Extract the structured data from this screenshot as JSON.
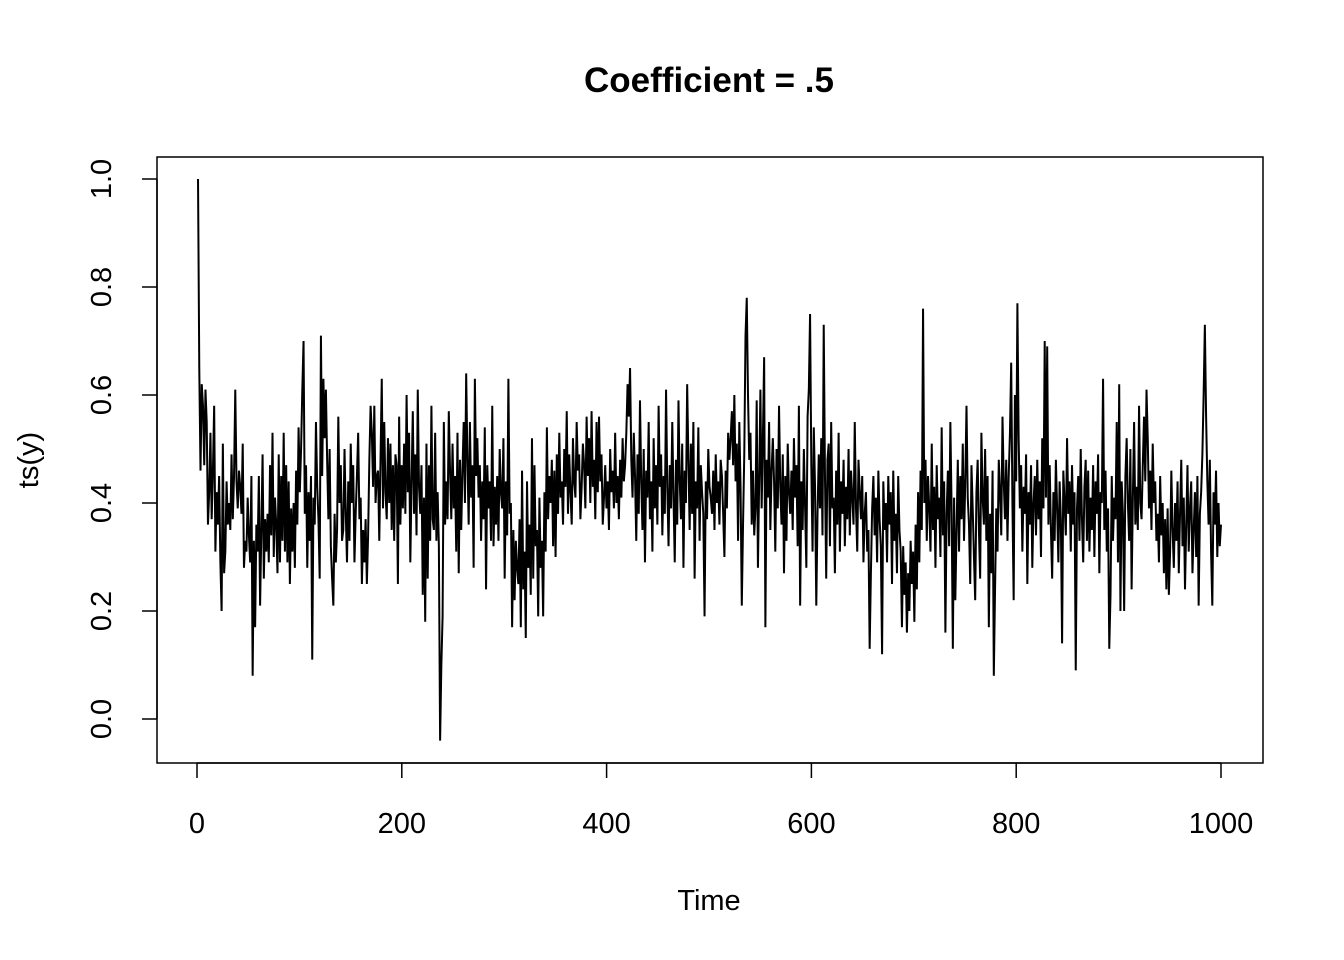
{
  "chart_data": {
    "type": "line",
    "title": "Coefficient = .5",
    "xlabel": "Time",
    "ylabel": "ts(y)",
    "xlim": [
      1,
      1000
    ],
    "ylim": [
      -0.04,
      1.0
    ],
    "x_ticks": [
      "0",
      "200",
      "400",
      "600",
      "800",
      "1000"
    ],
    "y_ticks": [
      "0.0",
      "0.2",
      "0.4",
      "0.6",
      "0.8",
      "1.0"
    ],
    "grid": false,
    "line_color": "#000000",
    "series": [
      {
        "x_start": 1,
        "x_step": 1,
        "values": [
          1.0,
          0.65,
          0.46,
          0.62,
          0.58,
          0.47,
          0.61,
          0.55,
          0.36,
          0.42,
          0.53,
          0.37,
          0.46,
          0.58,
          0.31,
          0.42,
          0.36,
          0.45,
          0.29,
          0.2,
          0.51,
          0.27,
          0.31,
          0.44,
          0.36,
          0.4,
          0.35,
          0.49,
          0.37,
          0.45,
          0.61,
          0.44,
          0.39,
          0.46,
          0.43,
          0.38,
          0.51,
          0.28,
          0.33,
          0.31,
          0.41,
          0.34,
          0.29,
          0.45,
          0.08,
          0.33,
          0.17,
          0.36,
          0.31,
          0.45,
          0.21,
          0.35,
          0.49,
          0.26,
          0.37,
          0.31,
          0.38,
          0.29,
          0.47,
          0.34,
          0.53,
          0.3,
          0.41,
          0.36,
          0.27,
          0.49,
          0.29,
          0.45,
          0.33,
          0.53,
          0.31,
          0.47,
          0.29,
          0.44,
          0.25,
          0.39,
          0.31,
          0.4,
          0.28,
          0.46,
          0.36,
          0.54,
          0.42,
          0.5,
          0.61,
          0.7,
          0.38,
          0.47,
          0.28,
          0.42,
          0.33,
          0.45,
          0.11,
          0.41,
          0.36,
          0.55,
          0.43,
          0.37,
          0.26,
          0.71,
          0.45,
          0.63,
          0.52,
          0.61,
          0.48,
          0.37,
          0.5,
          0.32,
          0.26,
          0.21,
          0.38,
          0.29,
          0.35,
          0.56,
          0.4,
          0.47,
          0.33,
          0.35,
          0.5,
          0.38,
          0.29,
          0.44,
          0.33,
          0.51,
          0.4,
          0.47,
          0.29,
          0.38,
          0.45,
          0.53,
          0.37,
          0.41,
          0.25,
          0.35,
          0.29,
          0.37,
          0.25,
          0.34,
          0.48,
          0.58,
          0.53,
          0.43,
          0.58,
          0.4,
          0.45,
          0.46,
          0.33,
          0.48,
          0.63,
          0.39,
          0.55,
          0.42,
          0.37,
          0.52,
          0.4,
          0.51,
          0.35,
          0.47,
          0.33,
          0.49,
          0.47,
          0.25,
          0.56,
          0.36,
          0.47,
          0.39,
          0.51,
          0.38,
          0.6,
          0.42,
          0.53,
          0.29,
          0.44,
          0.57,
          0.38,
          0.49,
          0.34,
          0.61,
          0.43,
          0.38,
          0.47,
          0.23,
          0.41,
          0.18,
          0.51,
          0.26,
          0.47,
          0.33,
          0.58,
          0.37,
          0.35,
          0.53,
          0.33,
          0.42,
          0.32,
          -0.04,
          0.1,
          0.19,
          0.55,
          0.36,
          0.44,
          0.37,
          0.57,
          0.46,
          0.37,
          0.51,
          0.39,
          0.45,
          0.31,
          0.53,
          0.27,
          0.48,
          0.35,
          0.46,
          0.55,
          0.4,
          0.64,
          0.48,
          0.36,
          0.55,
          0.41,
          0.47,
          0.28,
          0.63,
          0.45,
          0.52,
          0.41,
          0.47,
          0.33,
          0.44,
          0.37,
          0.54,
          0.24,
          0.47,
          0.39,
          0.44,
          0.33,
          0.58,
          0.32,
          0.43,
          0.36,
          0.45,
          0.33,
          0.5,
          0.42,
          0.39,
          0.52,
          0.26,
          0.44,
          0.34,
          0.63,
          0.38,
          0.4,
          0.17,
          0.35,
          0.22,
          0.33,
          0.28,
          0.25,
          0.37,
          0.17,
          0.46,
          0.24,
          0.31,
          0.15,
          0.44,
          0.28,
          0.36,
          0.23,
          0.52,
          0.26,
          0.47,
          0.32,
          0.35,
          0.19,
          0.41,
          0.28,
          0.33,
          0.19,
          0.42,
          0.31,
          0.54,
          0.37,
          0.45,
          0.4,
          0.48,
          0.32,
          0.46,
          0.3,
          0.49,
          0.38,
          0.53,
          0.41,
          0.44,
          0.36,
          0.5,
          0.43,
          0.57,
          0.38,
          0.49,
          0.42,
          0.36,
          0.52,
          0.44,
          0.41,
          0.55,
          0.46,
          0.49,
          0.37,
          0.43,
          0.51,
          0.47,
          0.39,
          0.56,
          0.45,
          0.52,
          0.4,
          0.57,
          0.43,
          0.48,
          0.37,
          0.55,
          0.42,
          0.56,
          0.44,
          0.49,
          0.36,
          0.41,
          0.47,
          0.39,
          0.44,
          0.35,
          0.5,
          0.42,
          0.46,
          0.39,
          0.53,
          0.4,
          0.45,
          0.37,
          0.48,
          0.41,
          0.52,
          0.44,
          0.47,
          0.53,
          0.62,
          0.56,
          0.65,
          0.48,
          0.41,
          0.53,
          0.45,
          0.33,
          0.49,
          0.38,
          0.59,
          0.44,
          0.35,
          0.5,
          0.29,
          0.46,
          0.41,
          0.55,
          0.37,
          0.44,
          0.31,
          0.52,
          0.39,
          0.47,
          0.36,
          0.58,
          0.43,
          0.49,
          0.34,
          0.45,
          0.38,
          0.61,
          0.43,
          0.32,
          0.47,
          0.39,
          0.55,
          0.41,
          0.29,
          0.48,
          0.36,
          0.59,
          0.44,
          0.37,
          0.51,
          0.28,
          0.46,
          0.4,
          0.62,
          0.48,
          0.35,
          0.51,
          0.38,
          0.55,
          0.26,
          0.44,
          0.39,
          0.54,
          0.33,
          0.47,
          0.42,
          0.38,
          0.19,
          0.44,
          0.37,
          0.5,
          0.43,
          0.41,
          0.38,
          0.46,
          0.35,
          0.49,
          0.4,
          0.44,
          0.36,
          0.48,
          0.45,
          0.38,
          0.3,
          0.46,
          0.39,
          0.53,
          0.48,
          0.52,
          0.57,
          0.47,
          0.6,
          0.44,
          0.51,
          0.33,
          0.55,
          0.43,
          0.21,
          0.36,
          0.49,
          0.71,
          0.78,
          0.6,
          0.48,
          0.53,
          0.36,
          0.46,
          0.34,
          0.39,
          0.59,
          0.28,
          0.44,
          0.61,
          0.39,
          0.52,
          0.67,
          0.17,
          0.48,
          0.41,
          0.55,
          0.35,
          0.46,
          0.52,
          0.44,
          0.31,
          0.5,
          0.39,
          0.58,
          0.43,
          0.36,
          0.49,
          0.27,
          0.45,
          0.33,
          0.51,
          0.42,
          0.38,
          0.46,
          0.35,
          0.52,
          0.41,
          0.47,
          0.32,
          0.58,
          0.21,
          0.44,
          0.35,
          0.5,
          0.39,
          0.28,
          0.56,
          0.61,
          0.75,
          0.47,
          0.31,
          0.54,
          0.43,
          0.21,
          0.38,
          0.49,
          0.39,
          0.52,
          0.34,
          0.73,
          0.45,
          0.26,
          0.48,
          0.51,
          0.32,
          0.55,
          0.39,
          0.41,
          0.27,
          0.46,
          0.36,
          0.53,
          0.31,
          0.44,
          0.38,
          0.48,
          0.32,
          0.43,
          0.37,
          0.5,
          0.34,
          0.46,
          0.41,
          0.36,
          0.55,
          0.39,
          0.31,
          0.48,
          0.42,
          0.37,
          0.45,
          0.29,
          0.38,
          0.42,
          0.31,
          0.35,
          0.13,
          0.27,
          0.39,
          0.45,
          0.34,
          0.41,
          0.29,
          0.46,
          0.37,
          0.32,
          0.12,
          0.44,
          0.35,
          0.4,
          0.29,
          0.45,
          0.36,
          0.42,
          0.25,
          0.46,
          0.33,
          0.38,
          0.27,
          0.45,
          0.35,
          0.31,
          0.17,
          0.32,
          0.23,
          0.29,
          0.16,
          0.27,
          0.2,
          0.33,
          0.25,
          0.31,
          0.18,
          0.36,
          0.24,
          0.42,
          0.29,
          0.46,
          0.35,
          0.76,
          0.4,
          0.48,
          0.33,
          0.45,
          0.39,
          0.31,
          0.51,
          0.35,
          0.43,
          0.28,
          0.47,
          0.37,
          0.41,
          0.3,
          0.54,
          0.34,
          0.44,
          0.16,
          0.38,
          0.46,
          0.32,
          0.55,
          0.39,
          0.13,
          0.41,
          0.22,
          0.35,
          0.48,
          0.31,
          0.45,
          0.37,
          0.51,
          0.33,
          0.44,
          0.58,
          0.41,
          0.36,
          0.25,
          0.47,
          0.39,
          0.3,
          0.22,
          0.42,
          0.48,
          0.35,
          0.26,
          0.53,
          0.41,
          0.36,
          0.5,
          0.33,
          0.45,
          0.17,
          0.38,
          0.27,
          0.46,
          0.08,
          0.24,
          0.39,
          0.31,
          0.48,
          0.42,
          0.34,
          0.56,
          0.44,
          0.37,
          0.48,
          0.33,
          0.45,
          0.53,
          0.66,
          0.4,
          0.22,
          0.6,
          0.44,
          0.77,
          0.52,
          0.39,
          0.47,
          0.31,
          0.43,
          0.38,
          0.49,
          0.25,
          0.42,
          0.36,
          0.47,
          0.28,
          0.4,
          0.45,
          0.34,
          0.48,
          0.37,
          0.44,
          0.3,
          0.52,
          0.39,
          0.7,
          0.41,
          0.69,
          0.36,
          0.47,
          0.35,
          0.26,
          0.42,
          0.33,
          0.48,
          0.39,
          0.29,
          0.44,
          0.37,
          0.14,
          0.46,
          0.4,
          0.34,
          0.52,
          0.38,
          0.44,
          0.31,
          0.47,
          0.36,
          0.42,
          0.09,
          0.39,
          0.45,
          0.33,
          0.5,
          0.37,
          0.29,
          0.43,
          0.48,
          0.33,
          0.46,
          0.31,
          0.41,
          0.35,
          0.47,
          0.3,
          0.44,
          0.38,
          0.49,
          0.27,
          0.42,
          0.4,
          0.63,
          0.35,
          0.46,
          0.31,
          0.39,
          0.13,
          0.23,
          0.45,
          0.33,
          0.41,
          0.37,
          0.55,
          0.29,
          0.62,
          0.2,
          0.44,
          0.38,
          0.2,
          0.45,
          0.52,
          0.4,
          0.33,
          0.5,
          0.24,
          0.41,
          0.55,
          0.36,
          0.43,
          0.35,
          0.58,
          0.4,
          0.37,
          0.47,
          0.56,
          0.44,
          0.61,
          0.52,
          0.39,
          0.46,
          0.35,
          0.51,
          0.4,
          0.44,
          0.33,
          0.38,
          0.29,
          0.45,
          0.34,
          0.4,
          0.27,
          0.37,
          0.24,
          0.39,
          0.23,
          0.31,
          0.46,
          0.35,
          0.28,
          0.4,
          0.33,
          0.44,
          0.27,
          0.38,
          0.48,
          0.32,
          0.41,
          0.24,
          0.36,
          0.47,
          0.31,
          0.39,
          0.44,
          0.27,
          0.35,
          0.42,
          0.3,
          0.45,
          0.21,
          0.38,
          0.42,
          0.49,
          0.6,
          0.73,
          0.56,
          0.44,
          0.36,
          0.48,
          0.31,
          0.21,
          0.42,
          0.36,
          0.46,
          0.3,
          0.4,
          0.32,
          0.36
        ]
      }
    ]
  }
}
